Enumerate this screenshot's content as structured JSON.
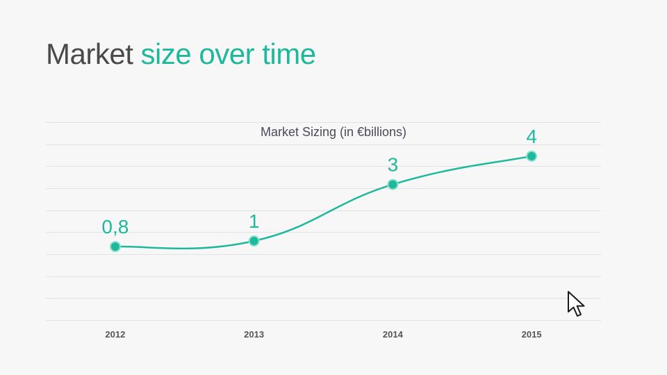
{
  "slide": {
    "title_part1": "Market",
    "title_part2": "size over time"
  },
  "chart_data": {
    "type": "line",
    "title": "Market Sizing (in €billions)",
    "categories": [
      "2012",
      "2013",
      "2014",
      "2015"
    ],
    "series": [
      {
        "name": "Market Sizing (in €billions)",
        "values": [
          0.8,
          1,
          3,
          4
        ],
        "labels": [
          "0,8",
          "1",
          "3",
          "4"
        ]
      }
    ],
    "ylim": [
      -1.8,
      5.2
    ],
    "y_grid_step": 0.7778,
    "grid": true,
    "smooth": true,
    "xlabel": "",
    "ylabel": ""
  },
  "colors": {
    "accent": "#1eb89a",
    "title_dark": "#4a4a4a",
    "background": "#f8f7f8",
    "grid": "#e3e2e4"
  },
  "cursor": {
    "icon": "arrow-pointer-icon"
  }
}
